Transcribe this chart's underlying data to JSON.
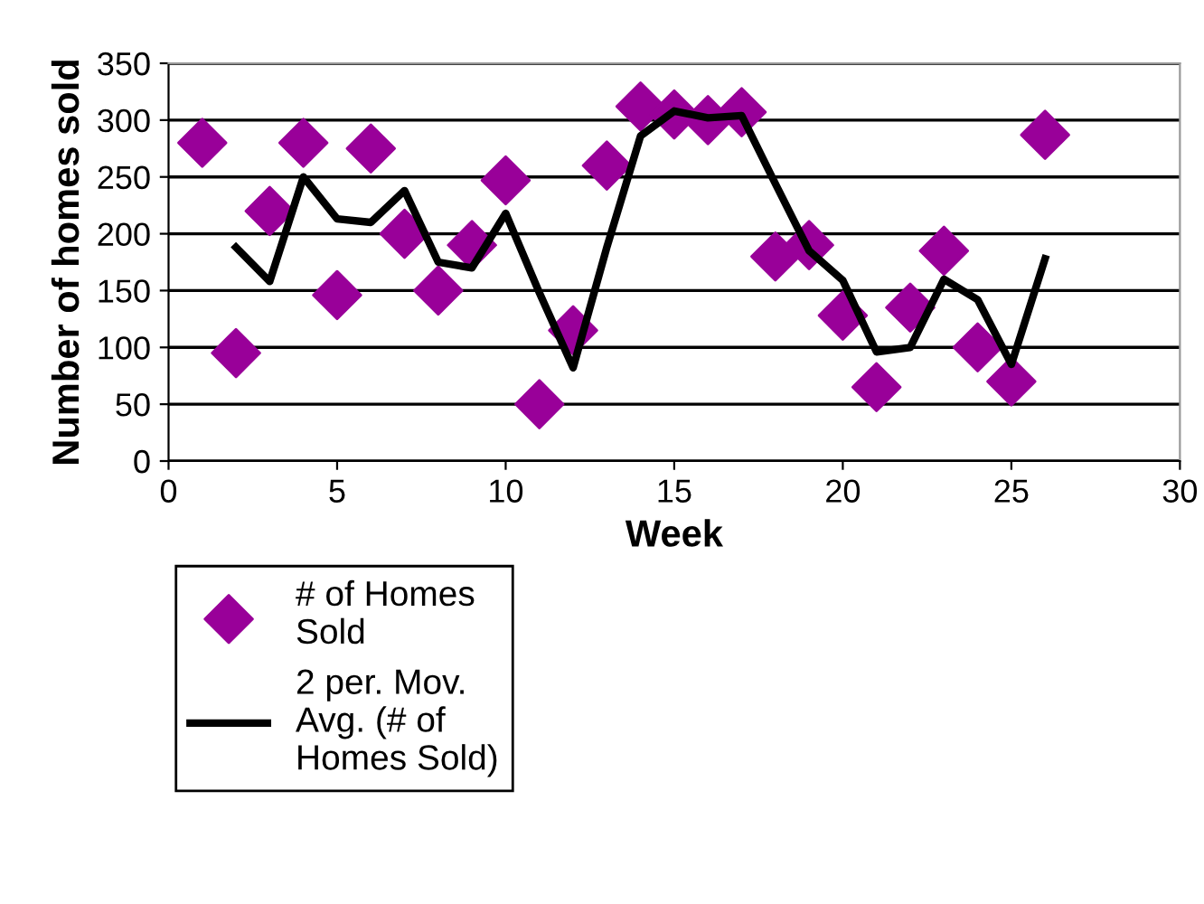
{
  "chart_data": {
    "type": "scatter",
    "xlabel": "Week",
    "ylabel": "Number of homes sold",
    "xlim": [
      0,
      30
    ],
    "xticks": [
      0,
      5,
      10,
      15,
      20,
      25,
      30
    ],
    "ylim": [
      0,
      350
    ],
    "yticks": [
      0,
      50,
      100,
      150,
      200,
      250,
      300,
      350
    ],
    "grid": "y",
    "legend": "bottom left",
    "series": [
      {
        "name": "# of Homes Sold",
        "marker": "diamond",
        "color": "#990099",
        "x": [
          1,
          2,
          3,
          4,
          5,
          6,
          7,
          8,
          9,
          10,
          11,
          12,
          13,
          14,
          15,
          16,
          17,
          18,
          19,
          20,
          21,
          22,
          23,
          24,
          25,
          26
        ],
        "values": [
          280,
          95,
          220,
          280,
          146,
          275,
          200,
          150,
          190,
          247,
          50,
          115,
          260,
          312,
          305,
          300,
          307,
          180,
          190,
          128,
          65,
          135,
          185,
          100,
          70,
          287
        ]
      },
      {
        "name": "2 per. Mov. Avg. (# of Homes Sold)",
        "type": "line",
        "marker": "none",
        "color": "#000000",
        "x": [
          2,
          3,
          4,
          5,
          6,
          7,
          8,
          9,
          10,
          11,
          12,
          13,
          14,
          15,
          16,
          17,
          18,
          19,
          20,
          21,
          22,
          23,
          24,
          25,
          26
        ],
        "values": [
          188,
          158,
          250,
          213,
          210,
          238,
          175,
          170,
          218,
          148,
          82,
          188,
          286,
          308,
          302,
          304,
          244,
          185,
          159,
          96,
          100,
          160,
          142,
          85,
          178
        ]
      }
    ]
  }
}
